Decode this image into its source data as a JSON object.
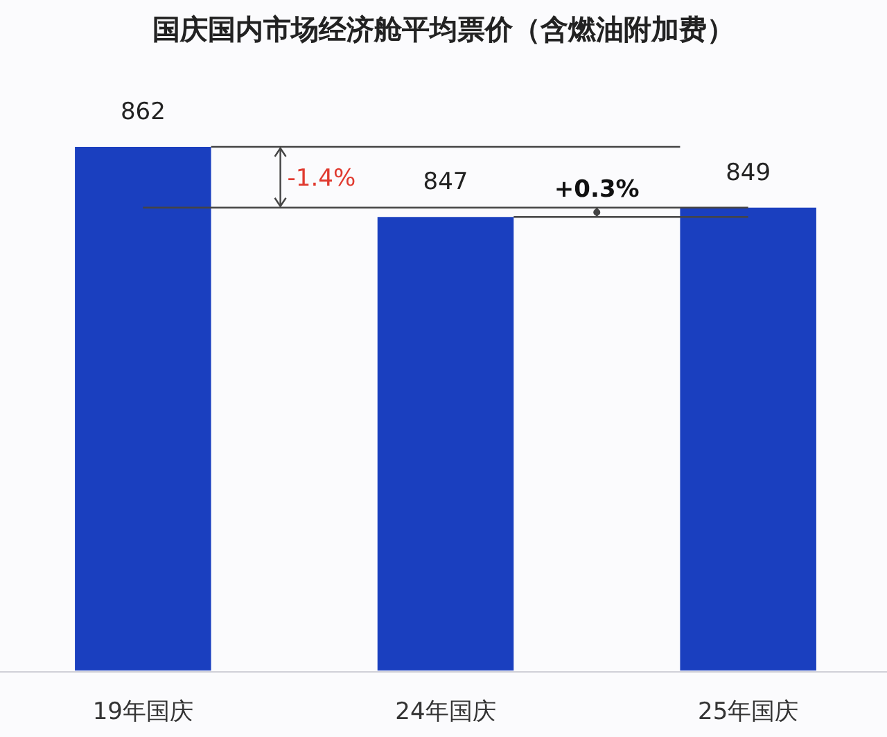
{
  "chart_data": {
    "type": "bar",
    "title": "国庆国内市场经济舱平均票价（含燃油附加费）",
    "categories": [
      "19年国庆",
      "24年国庆",
      "25年国庆"
    ],
    "values": [
      862,
      847,
      849
    ],
    "color": "#1a3fbf",
    "ylim": [
      750,
      862
    ],
    "ref_lines": [
      {
        "axis": "y",
        "value": 862,
        "color": "#444444"
      },
      {
        "axis": "y",
        "value": 849,
        "color": "#444444"
      },
      {
        "axis": "y",
        "value": 847,
        "color": "#444444"
      }
    ],
    "data_labels": true,
    "tick_labels": "x",
    "annotations": [
      "-1.4%",
      "+0.3%"
    ]
  }
}
